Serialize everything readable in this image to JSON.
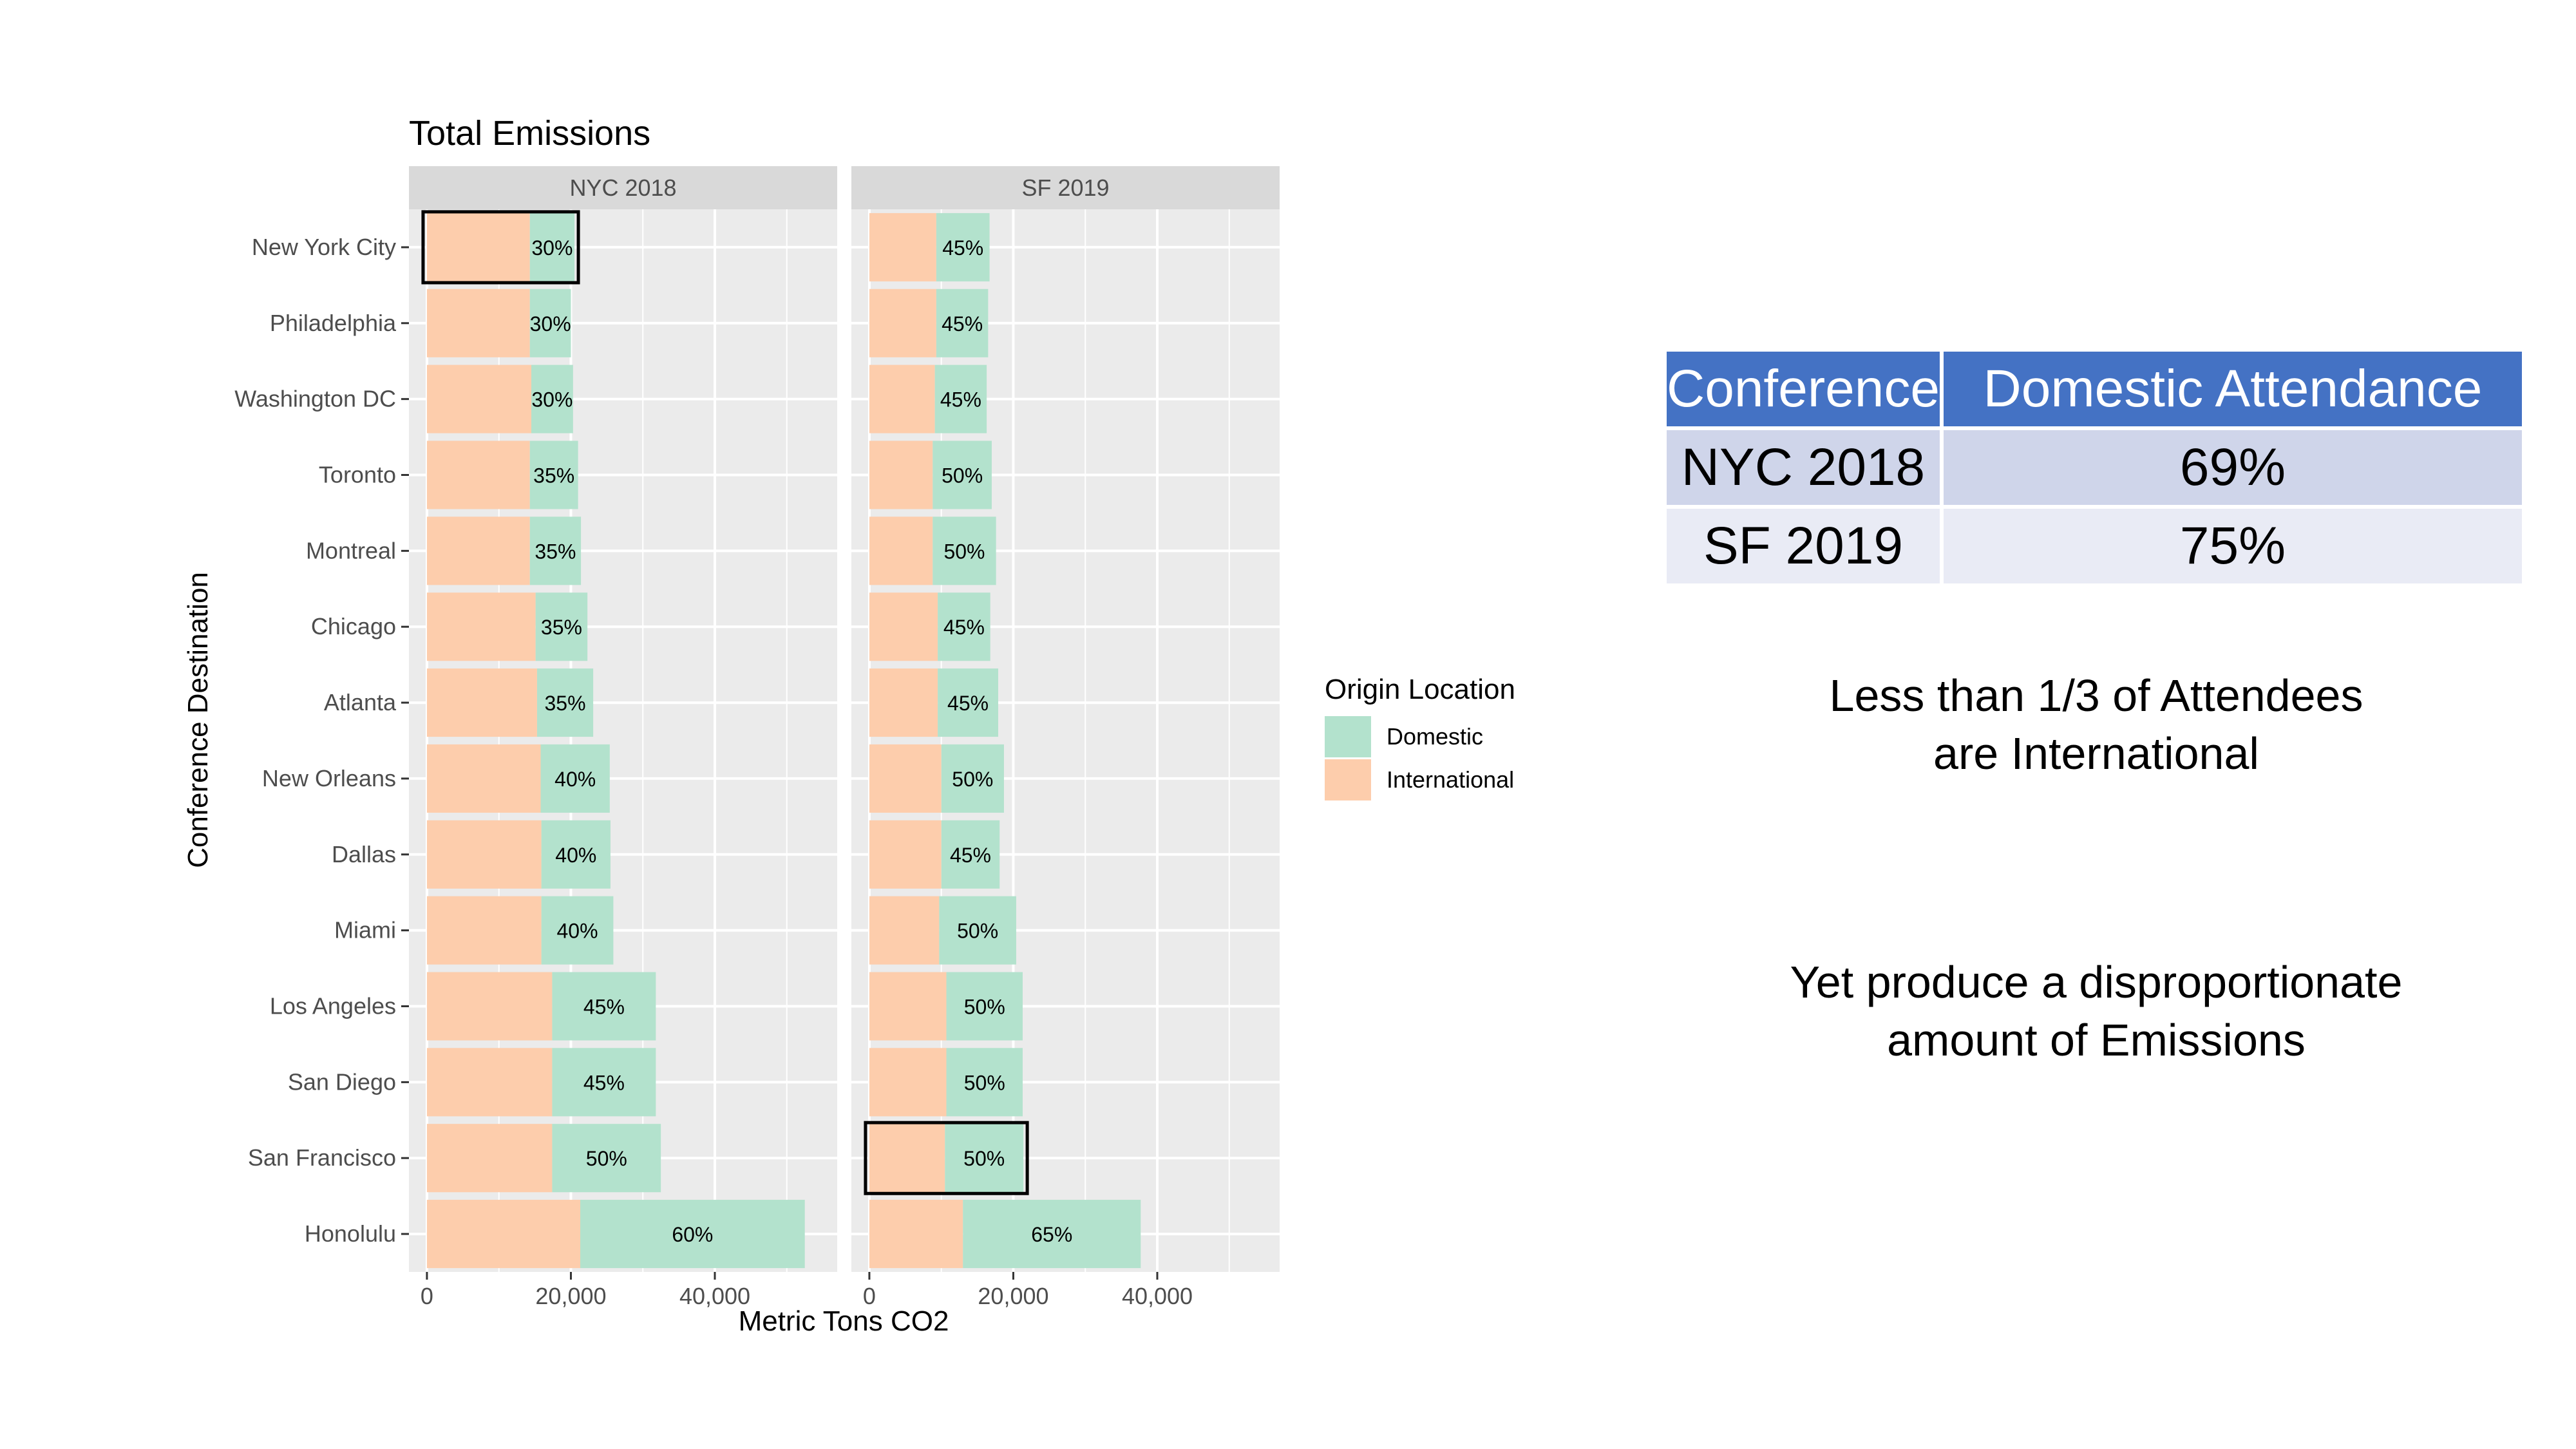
{
  "chart_data": {
    "type": "bar",
    "stacked": true,
    "orientation": "horizontal",
    "title": "Total Emissions",
    "xlabel": "Metric Tons CO2",
    "ylabel": "Conference Destination",
    "xlim": [
      -2500,
      57000
    ],
    "x_ticks": [
      0,
      20000,
      40000
    ],
    "x_tick_labels": [
      "0",
      "20,000",
      "40,000"
    ],
    "grid": true,
    "legend": {
      "title": "Origin Location",
      "position": "right",
      "entries": [
        "Domestic",
        "International"
      ]
    },
    "colors": {
      "Domestic": "#b3e2cd",
      "International": "#fdcdac",
      "panel_bg": "#ebebeb",
      "strip_bg": "#d9d9d9"
    },
    "categories": [
      "New York City",
      "Philadelphia",
      "Washington DC",
      "Toronto",
      "Montreal",
      "Chicago",
      "Atlanta",
      "New Orleans",
      "Dallas",
      "Miami",
      "Los Angeles",
      "San Diego",
      "San Francisco",
      "Honolulu"
    ],
    "facets": [
      {
        "name": "NYC 2018",
        "series": [
          {
            "name": "International",
            "values": [
              14300,
              14300,
              14500,
              14300,
              14300,
              15100,
              15300,
              15800,
              15900,
              15900,
              17400,
              17400,
              17400,
              21300
            ]
          },
          {
            "name": "Domestic",
            "values": [
              6200,
              5700,
              5800,
              6700,
              7100,
              7200,
              7800,
              9600,
              9600,
              10000,
              14400,
              14400,
              15100,
              31200
            ]
          }
        ],
        "bar_labels": [
          "30%",
          "30%",
          "30%",
          "35%",
          "35%",
          "35%",
          "35%",
          "40%",
          "40%",
          "40%",
          "45%",
          "45%",
          "50%",
          "60%"
        ],
        "highlighted": [
          "New York City"
        ]
      },
      {
        "name": "SF 2019",
        "series": [
          {
            "name": "International",
            "values": [
              9300,
              9300,
              9100,
              8800,
              8800,
              9500,
              9500,
              10000,
              10000,
              9700,
              10700,
              10700,
              10500,
              13000
            ]
          },
          {
            "name": "Domestic",
            "values": [
              7400,
              7200,
              7200,
              8200,
              8800,
              7300,
              8400,
              8700,
              8100,
              10700,
              10600,
              10600,
              10900,
              24700
            ]
          }
        ],
        "bar_labels": [
          "45%",
          "45%",
          "45%",
          "50%",
          "50%",
          "45%",
          "45%",
          "50%",
          "45%",
          "50%",
          "50%",
          "50%",
          "50%",
          "65%"
        ],
        "highlighted": [
          "San Francisco"
        ]
      }
    ]
  },
  "table": {
    "headers": [
      "Conference",
      "Domestic Attendance"
    ],
    "rows": [
      {
        "conference": "NYC 2018",
        "attendance": "69%"
      },
      {
        "conference": "SF 2019",
        "attendance": "75%"
      }
    ]
  },
  "notes": {
    "line1a": "Less than 1/3 of Attendees",
    "line1b": "are International",
    "line2a": "Yet produce a disproportionate",
    "line2b": "amount of Emissions"
  }
}
